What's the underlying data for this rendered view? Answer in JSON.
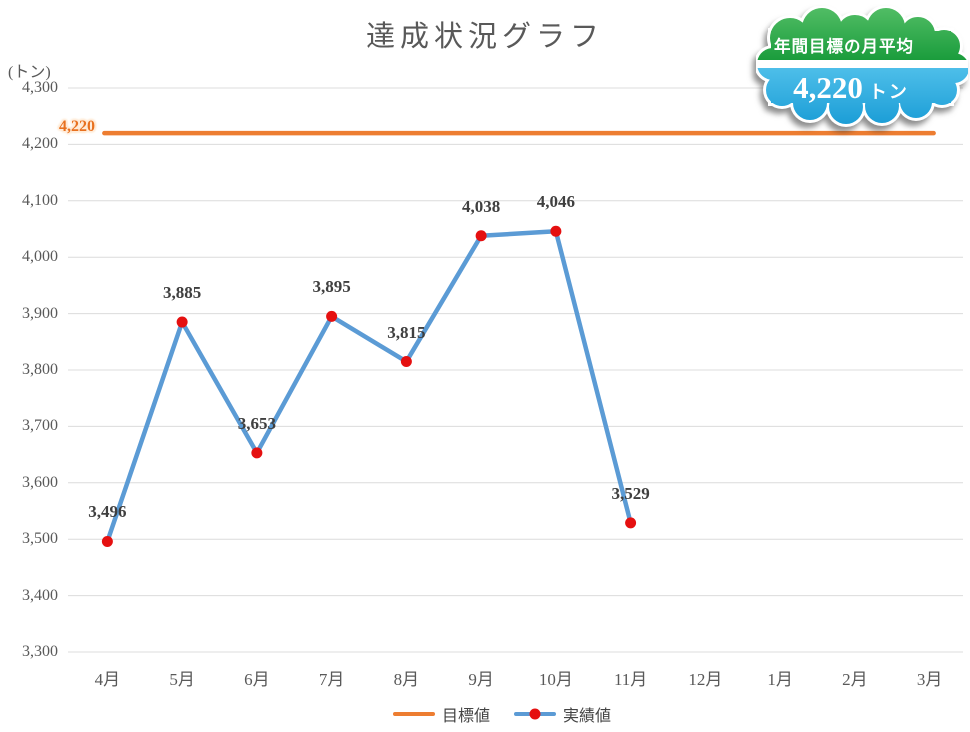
{
  "callout": {
    "line1": "年間目標の月平均",
    "value": "4,220",
    "unit": "トン"
  },
  "colors": {
    "target_line": "#ED7D31",
    "target_label_text": "#E8711F",
    "actual_line": "#5B9BD5",
    "marker": "#E51010",
    "grid": "#DCDCDC",
    "title_text": "#595959",
    "axis_text": "#595959",
    "data_label_text": "#3F3F3F",
    "cloud_green": "#2BA64A",
    "cloud_blue": "#2FA9DC"
  },
  "chart_data": {
    "type": "line",
    "title": "達成状況グラフ",
    "ylabel": "(トン)",
    "categories": [
      "4月",
      "5月",
      "6月",
      "7月",
      "8月",
      "9月",
      "10月",
      "11月",
      "12月",
      "1月",
      "2月",
      "3月"
    ],
    "series": [
      {
        "name": "目標値",
        "kind": "constant-line",
        "value": 4220,
        "label": "4,220"
      },
      {
        "name": "実績値",
        "kind": "line-with-markers",
        "values": [
          3496,
          3885,
          3653,
          3895,
          3815,
          4038,
          4046,
          3529,
          null,
          null,
          null,
          null
        ],
        "labels": [
          "3,496",
          "3,885",
          "3,653",
          "3,895",
          "3,815",
          "4,038",
          "4,046",
          "3,529"
        ]
      }
    ],
    "ylim": [
      3300,
      4300
    ],
    "ytick_step": 100,
    "grid": true,
    "legend_position": "bottom"
  }
}
